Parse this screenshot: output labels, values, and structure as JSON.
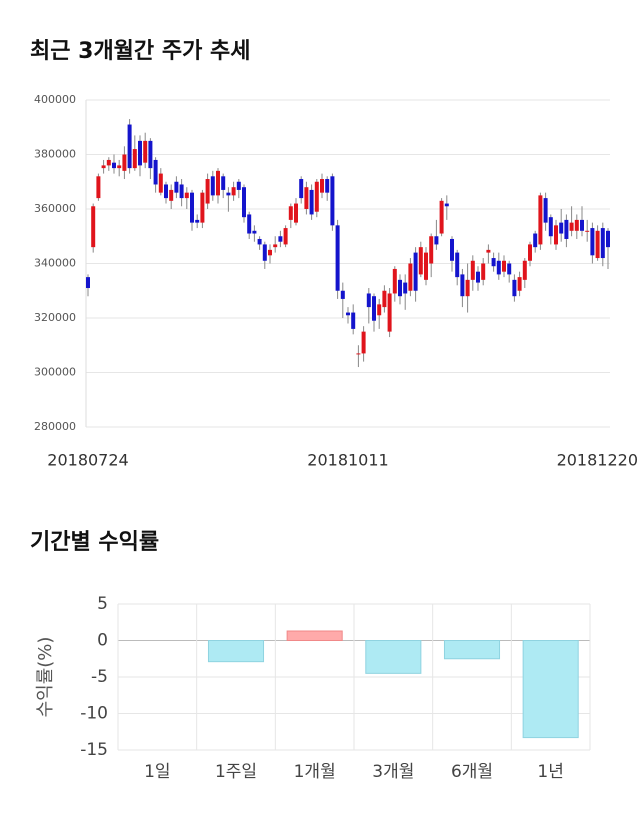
{
  "chart_data": [
    {
      "type": "candlestick",
      "title": "최근 3개월간 주가 추세",
      "categories": [
        "20180724",
        null,
        null,
        null,
        null,
        null,
        null,
        null,
        null,
        null,
        null,
        null,
        null,
        null,
        null,
        null,
        null,
        null,
        null,
        null,
        null,
        null,
        null,
        null,
        null,
        null,
        null,
        null,
        null,
        null,
        null,
        null,
        null,
        null,
        null,
        null,
        null,
        null,
        null,
        null,
        null,
        null,
        null,
        null,
        null,
        null,
        null,
        null,
        null,
        null,
        "20181011",
        null,
        null,
        null,
        null,
        null,
        null,
        null,
        null,
        null,
        null,
        null,
        null,
        null,
        null,
        null,
        null,
        null,
        null,
        null,
        null,
        null,
        null,
        null,
        null,
        null,
        null,
        null,
        null,
        null,
        null,
        null,
        null,
        null,
        null,
        null,
        null,
        null,
        null,
        null,
        null,
        null,
        null,
        null,
        null,
        null,
        null,
        null,
        null,
        null,
        "20181220"
      ],
      "open": [
        335000,
        346000,
        364000,
        375000,
        376000,
        377000,
        375000,
        374000,
        391000,
        375000,
        385000,
        377000,
        385000,
        378000,
        366000,
        369000,
        363000,
        370000,
        369000,
        364000,
        366000,
        356000,
        355000,
        362000,
        372000,
        365000,
        372000,
        366000,
        365000,
        370000,
        368000,
        358000,
        352000,
        349000,
        347000,
        343000,
        346000,
        350000,
        347000,
        356000,
        355000,
        371000,
        360000,
        367000,
        359000,
        366000,
        371000,
        372000,
        354000,
        330000,
        322000,
        322000,
        307000,
        307000,
        329000,
        328000,
        321000,
        324000,
        315000,
        329000,
        334000,
        333000,
        330000,
        344000,
        336000,
        334000,
        340000,
        350000,
        351000,
        362000,
        349000,
        344000,
        336000,
        328000,
        334000,
        337000,
        334000,
        344000,
        342000,
        341000,
        337000,
        340000,
        334000,
        330000,
        334000,
        341000,
        351000,
        347000,
        364000,
        357000,
        347000,
        355000,
        356000,
        352000,
        352000,
        356000,
        352000,
        353000,
        342000,
        353000,
        352000
      ],
      "high": [
        336000,
        362000,
        373000,
        378000,
        379000,
        380000,
        378000,
        383000,
        393000,
        387000,
        387000,
        388000,
        386000,
        379000,
        375000,
        370000,
        369000,
        372000,
        371000,
        368000,
        367000,
        358000,
        367000,
        373000,
        374000,
        375000,
        373000,
        368000,
        370000,
        371000,
        369000,
        359000,
        354000,
        350000,
        348000,
        347000,
        350000,
        352000,
        354000,
        362000,
        364000,
        372000,
        370000,
        369000,
        371000,
        373000,
        372000,
        373000,
        356000,
        333000,
        324000,
        325000,
        310000,
        317000,
        331000,
        329000,
        327000,
        332000,
        331000,
        339000,
        336000,
        336000,
        342000,
        346000,
        348000,
        346000,
        351000,
        356000,
        364000,
        365000,
        350000,
        345000,
        338000,
        340000,
        343000,
        339000,
        342000,
        347000,
        344000,
        344000,
        343000,
        341000,
        336000,
        337000,
        342000,
        348000,
        352000,
        366000,
        366000,
        358000,
        356000,
        360000,
        358000,
        361000,
        358000,
        361000,
        356000,
        355000,
        354000,
        355000,
        353000
      ],
      "low": [
        328000,
        344000,
        363000,
        373000,
        374000,
        373000,
        372000,
        371000,
        373000,
        374000,
        372000,
        375000,
        371000,
        366000,
        365000,
        362000,
        360000,
        364000,
        361000,
        360000,
        352000,
        353000,
        353000,
        360000,
        363000,
        362000,
        364000,
        359000,
        363000,
        364000,
        355000,
        349000,
        348000,
        345000,
        338000,
        340000,
        344000,
        346000,
        346000,
        353000,
        354000,
        362000,
        358000,
        356000,
        357000,
        364000,
        363000,
        352000,
        327000,
        320000,
        318000,
        314000,
        302000,
        304000,
        318000,
        315000,
        316000,
        322000,
        313000,
        326000,
        325000,
        323000,
        328000,
        326000,
        335000,
        332000,
        335000,
        345000,
        350000,
        356000,
        337000,
        332000,
        324000,
        322000,
        330000,
        330000,
        332000,
        340000,
        337000,
        334000,
        335000,
        333000,
        326000,
        328000,
        331000,
        339000,
        344000,
        345000,
        352000,
        347000,
        345000,
        348000,
        346000,
        350000,
        349000,
        350000,
        348000,
        340000,
        341000,
        339000,
        338000
      ],
      "close": [
        331000,
        361000,
        372000,
        376000,
        378000,
        375000,
        376000,
        380000,
        375000,
        382000,
        376000,
        385000,
        375000,
        369000,
        373000,
        364000,
        367000,
        366000,
        364000,
        366000,
        355000,
        355000,
        366000,
        371000,
        365000,
        374000,
        367000,
        365000,
        368000,
        367000,
        357000,
        351000,
        351000,
        347000,
        341000,
        345000,
        347000,
        348000,
        353000,
        361000,
        362000,
        364000,
        368000,
        358000,
        370000,
        371000,
        366000,
        354000,
        330000,
        327000,
        321000,
        316000,
        307000,
        315000,
        324000,
        319000,
        325000,
        330000,
        329000,
        338000,
        328000,
        329000,
        340000,
        330000,
        346000,
        344000,
        350000,
        347000,
        363000,
        361000,
        341000,
        335000,
        328000,
        334000,
        341000,
        333000,
        340000,
        345000,
        339000,
        336000,
        341000,
        336000,
        328000,
        335000,
        341000,
        347000,
        346000,
        365000,
        355000,
        350000,
        354000,
        351000,
        349000,
        355000,
        356000,
        352000,
        352000,
        343000,
        352000,
        342000,
        346000
      ],
      "up_color": "#e0141c",
      "down_color": "#1414cc",
      "ylim": [
        280000,
        400000
      ],
      "yticks": [
        280000,
        300000,
        320000,
        340000,
        360000,
        380000,
        400000
      ],
      "grid": true
    },
    {
      "type": "bar",
      "title": "기간별 수익률",
      "ylabel": "수익률(%)",
      "categories": [
        "1일",
        "1주일",
        "1개월",
        "3개월",
        "6개월",
        "1년"
      ],
      "values": [
        0,
        -2.9,
        1.3,
        -4.5,
        -2.5,
        -13.3
      ],
      "positive_color": "#ffaaaa",
      "negative_color": "#aeeaf3",
      "ylim": [
        -15,
        5
      ],
      "yticks": [
        5,
        0,
        -5,
        -10,
        -15
      ],
      "grid": true
    }
  ]
}
